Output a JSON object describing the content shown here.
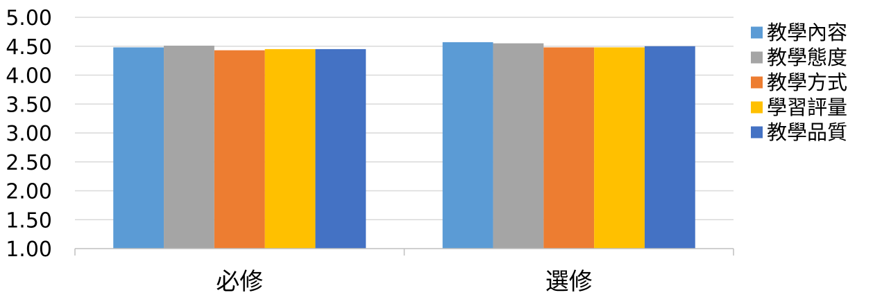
{
  "chart_data": {
    "type": "bar",
    "title": "",
    "xlabel": "",
    "ylabel": "",
    "categories": [
      "必修",
      "選修"
    ],
    "ylim": [
      1.0,
      5.0
    ],
    "yticks": [
      "1.00",
      "1.50",
      "2.00",
      "2.50",
      "3.00",
      "3.50",
      "4.00",
      "4.50",
      "5.00"
    ],
    "grid": true,
    "legend_position": "right",
    "series": [
      {
        "name": "教學內容",
        "color": "#5B9BD5",
        "values": [
          4.48,
          4.57
        ]
      },
      {
        "name": "教學態度",
        "color": "#A5A5A5",
        "values": [
          4.51,
          4.55
        ]
      },
      {
        "name": "教學方式",
        "color": "#ED7D31",
        "values": [
          4.43,
          4.48
        ]
      },
      {
        "name": "學習評量",
        "color": "#FFC000",
        "values": [
          4.45,
          4.48
        ]
      },
      {
        "name": "教學品質",
        "color": "#4472C4",
        "values": [
          4.45,
          4.5
        ]
      }
    ]
  }
}
